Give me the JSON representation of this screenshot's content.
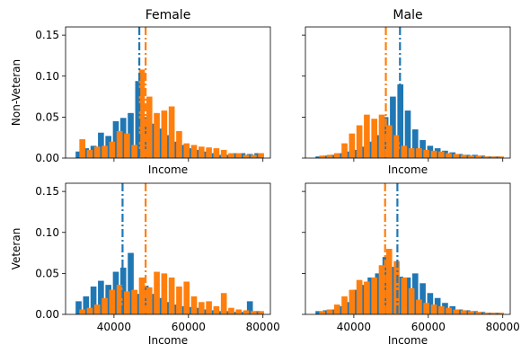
{
  "colors": {
    "series_a": "#1f77b4",
    "series_b": "#ff7f0e"
  },
  "chart_data": [
    {
      "type": "histogram",
      "column_title": "Female",
      "row_label": "Non-Veteran",
      "xlabel": "Income",
      "ylabel": "Non-Veteran",
      "xlim": [
        27000,
        82000
      ],
      "ylim": [
        0,
        0.16
      ],
      "yticks": [
        "0.00",
        "0.05",
        "0.10",
        "0.15"
      ],
      "xticks": [],
      "vlines": [
        {
          "series": 0,
          "x": 46800
        },
        {
          "series": 1,
          "x": 48500
        }
      ],
      "series": [
        {
          "x": [
            30500,
            32500,
            34500,
            36500,
            38500,
            40500,
            42500,
            44500,
            46500,
            48500,
            50500,
            52500,
            54500,
            56500,
            58500,
            60500,
            62500,
            64500,
            66500,
            68500,
            70500,
            72500,
            74500,
            76500,
            78500
          ],
          "values": [
            0.008,
            0.012,
            0.015,
            0.031,
            0.027,
            0.045,
            0.049,
            0.055,
            0.094,
            0.05,
            0.042,
            0.036,
            0.028,
            0.02,
            0.016,
            0.012,
            0.01,
            0.008,
            0.006,
            0.004,
            0.004,
            0.006,
            0.006,
            0.005,
            0.006
          ]
        },
        {
          "x": [
            31500,
            33500,
            35500,
            37500,
            39500,
            41500,
            43500,
            45500,
            47500,
            49500,
            51500,
            53500,
            55500,
            57500,
            59500,
            61500,
            63500,
            65500,
            67500,
            69500,
            71500,
            73500,
            75500,
            77500,
            79500
          ],
          "values": [
            0.023,
            0.01,
            0.014,
            0.015,
            0.02,
            0.033,
            0.03,
            0.016,
            0.108,
            0.075,
            0.055,
            0.058,
            0.063,
            0.033,
            0.018,
            0.016,
            0.014,
            0.013,
            0.012,
            0.01,
            0.006,
            0.006,
            0.004,
            0.004,
            0.006
          ]
        }
      ]
    },
    {
      "type": "histogram",
      "column_title": "Male",
      "row_label": "",
      "xlabel": "Income",
      "ylabel": "",
      "xlim": [
        27000,
        82000
      ],
      "ylim": [
        0,
        0.16
      ],
      "yticks": [],
      "xticks": [],
      "vlines": [
        {
          "series": 0,
          "x": 52400
        },
        {
          "series": 1,
          "x": 48600
        }
      ],
      "series": [
        {
          "x": [
            30500,
            32500,
            34500,
            36500,
            38500,
            40500,
            42500,
            44500,
            46500,
            48500,
            50500,
            52500,
            54500,
            56500,
            58500,
            60500,
            62500,
            64500,
            66500,
            68500,
            70500,
            72500,
            74500,
            76500,
            78500
          ],
          "values": [
            0.002,
            0.003,
            0.004,
            0.006,
            0.008,
            0.01,
            0.014,
            0.02,
            0.028,
            0.05,
            0.075,
            0.09,
            0.058,
            0.035,
            0.022,
            0.015,
            0.012,
            0.009,
            0.007,
            0.005,
            0.004,
            0.004,
            0.003,
            0.002,
            0.002
          ]
        },
        {
          "x": [
            31500,
            33500,
            35500,
            37500,
            39500,
            41500,
            43500,
            45500,
            47500,
            49500,
            51500,
            53500,
            55500,
            57500,
            59500,
            61500,
            63500,
            65500,
            67500,
            69500,
            71500,
            73500,
            75500,
            77500,
            79500
          ],
          "values": [
            0.003,
            0.004,
            0.006,
            0.018,
            0.03,
            0.04,
            0.053,
            0.048,
            0.053,
            0.04,
            0.028,
            0.015,
            0.012,
            0.012,
            0.01,
            0.009,
            0.008,
            0.006,
            0.005,
            0.004,
            0.003,
            0.003,
            0.002,
            0.002,
            0.002
          ]
        }
      ]
    },
    {
      "type": "histogram",
      "column_title": "",
      "row_label": "Veteran",
      "xlabel": "Income",
      "ylabel": "Veteran",
      "xlim": [
        27000,
        82000
      ],
      "ylim": [
        0,
        0.16
      ],
      "yticks": [
        "0.00",
        "0.05",
        "0.10",
        "0.15"
      ],
      "xticks": [
        "40000",
        "60000",
        "80000"
      ],
      "vlines": [
        {
          "series": 0,
          "x": 42300
        },
        {
          "series": 1,
          "x": 48500
        }
      ],
      "series": [
        {
          "x": [
            30500,
            32500,
            34500,
            36500,
            38500,
            40500,
            42500,
            44500,
            46500,
            48500,
            50500,
            52500,
            54500,
            56500,
            58500,
            60500,
            62500,
            64500,
            66500,
            68500,
            70500,
            72500,
            74500,
            76500,
            78500
          ],
          "values": [
            0.016,
            0.022,
            0.034,
            0.041,
            0.036,
            0.052,
            0.057,
            0.075,
            0.025,
            0.035,
            0.025,
            0.02,
            0.015,
            0.012,
            0.01,
            0.009,
            0.008,
            0.006,
            0.005,
            0.004,
            0.004,
            0.003,
            0.003,
            0.016,
            0.004
          ]
        },
        {
          "x": [
            31500,
            33500,
            35500,
            37500,
            39500,
            41500,
            43500,
            45500,
            47500,
            49500,
            51500,
            53500,
            55500,
            57500,
            59500,
            61500,
            63500,
            65500,
            67500,
            69500,
            71500,
            73500,
            75500,
            77500,
            79500
          ],
          "values": [
            0.006,
            0.008,
            0.012,
            0.02,
            0.03,
            0.036,
            0.028,
            0.03,
            0.045,
            0.033,
            0.052,
            0.05,
            0.045,
            0.034,
            0.04,
            0.022,
            0.015,
            0.016,
            0.01,
            0.026,
            0.008,
            0.006,
            0.005,
            0.004,
            0.004
          ]
        }
      ]
    },
    {
      "type": "histogram",
      "column_title": "",
      "row_label": "",
      "xlabel": "Income",
      "ylabel": "",
      "xlim": [
        27000,
        82000
      ],
      "ylim": [
        0,
        0.16
      ],
      "yticks": [],
      "xticks": [
        "40000",
        "60000",
        "80000"
      ],
      "vlines": [
        {
          "series": 0,
          "x": 51700
        },
        {
          "series": 1,
          "x": 48400
        }
      ],
      "series": [
        {
          "x": [
            30500,
            32500,
            34500,
            36500,
            38500,
            40500,
            42500,
            44500,
            46500,
            48500,
            50500,
            52500,
            54500,
            56500,
            58500,
            60500,
            62500,
            64500,
            66500,
            68500,
            70500,
            72500,
            74500,
            76500,
            78500
          ],
          "values": [
            0.004,
            0.005,
            0.006,
            0.01,
            0.015,
            0.03,
            0.036,
            0.045,
            0.05,
            0.07,
            0.058,
            0.046,
            0.045,
            0.05,
            0.038,
            0.026,
            0.02,
            0.014,
            0.01,
            0.006,
            0.005,
            0.004,
            0.003,
            0.002,
            0.002
          ]
        },
        {
          "x": [
            31500,
            33500,
            35500,
            37500,
            39500,
            41500,
            43500,
            45500,
            47500,
            49500,
            51500,
            53500,
            55500,
            57500,
            59500,
            61500,
            63500,
            65500,
            67500,
            69500,
            71500,
            73500,
            75500,
            77500,
            79500
          ],
          "values": [
            0.004,
            0.006,
            0.012,
            0.022,
            0.03,
            0.042,
            0.04,
            0.045,
            0.06,
            0.08,
            0.065,
            0.045,
            0.032,
            0.018,
            0.014,
            0.012,
            0.01,
            0.008,
            0.006,
            0.005,
            0.004,
            0.003,
            0.002,
            0.002,
            0.002
          ]
        }
      ]
    }
  ]
}
